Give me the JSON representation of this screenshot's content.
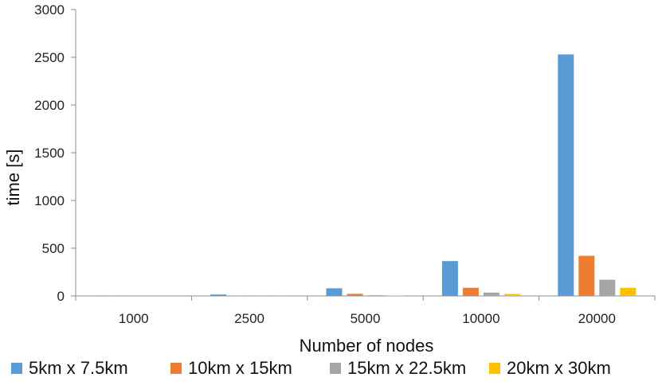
{
  "chart_data": {
    "type": "bar",
    "title": "",
    "xlabel": "Number of nodes",
    "ylabel": "time [s]",
    "categories": [
      "1000",
      "2500",
      "5000",
      "10000",
      "20000"
    ],
    "ylim": [
      0,
      3000
    ],
    "yticks": [
      0,
      500,
      1000,
      1500,
      2000,
      2500,
      3000
    ],
    "grid": false,
    "legend_position": "bottom",
    "series": [
      {
        "name": "5km x 7.5km",
        "color": "#5B9BD5",
        "values": [
          2,
          15,
          80,
          365,
          2530
        ]
      },
      {
        "name": "10km x 15km",
        "color": "#ED7D31",
        "values": [
          1,
          4,
          22,
          85,
          420
        ]
      },
      {
        "name": "15km x 22.5km",
        "color": "#A5A5A5",
        "values": [
          0,
          2,
          8,
          35,
          170
        ]
      },
      {
        "name": "20km x 30km",
        "color": "#FFC000",
        "values": [
          0,
          1,
          5,
          20,
          85
        ]
      }
    ]
  }
}
